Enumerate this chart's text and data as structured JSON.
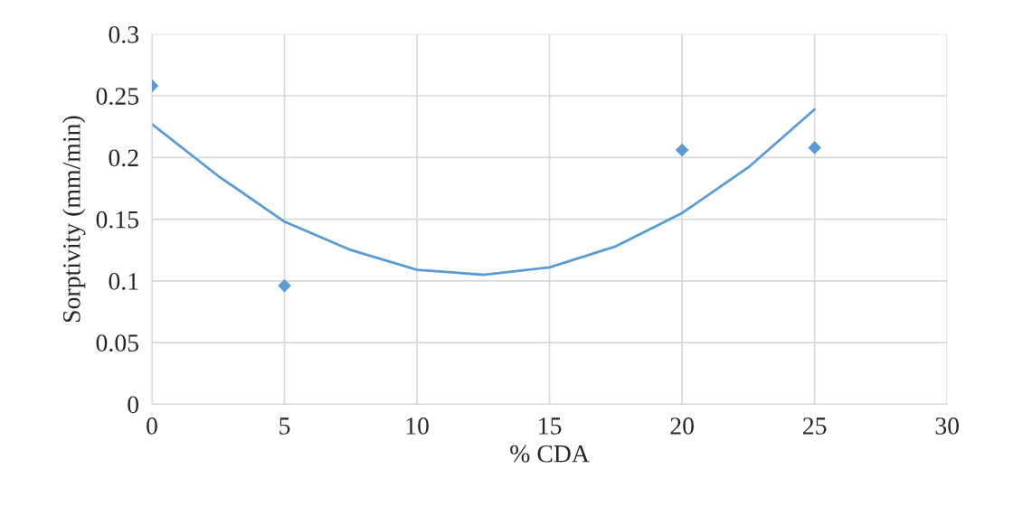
{
  "chart_data": {
    "type": "scatter",
    "xlabel": "% CDA",
    "ylabel": "Sorptivity (mm/min)",
    "xlim": [
      0,
      30
    ],
    "xticks": [
      0,
      5,
      10,
      15,
      20,
      25,
      30
    ],
    "ylim": [
      0,
      0.3
    ],
    "yticks": [
      0,
      0.05,
      0.1,
      0.15,
      0.2,
      0.25,
      0.3
    ],
    "grid": true,
    "series": [
      {
        "color": "#5b9bd5",
        "marker": "diamond",
        "x": [
          0,
          5,
          20,
          25
        ],
        "values": [
          0.258,
          0.096,
          0.206,
          0.208
        ]
      },
      {
        "type": "line",
        "color": "#5b9bd5",
        "line_style": "solid",
        "x": [
          0,
          2.5,
          5,
          7.5,
          10,
          12.5,
          15,
          17.5,
          20,
          22.5,
          25
        ],
        "values": [
          0.227,
          0.185,
          0.148,
          0.125,
          0.109,
          0.105,
          0.111,
          0.128,
          0.155,
          0.192,
          0.239
        ]
      }
    ]
  }
}
